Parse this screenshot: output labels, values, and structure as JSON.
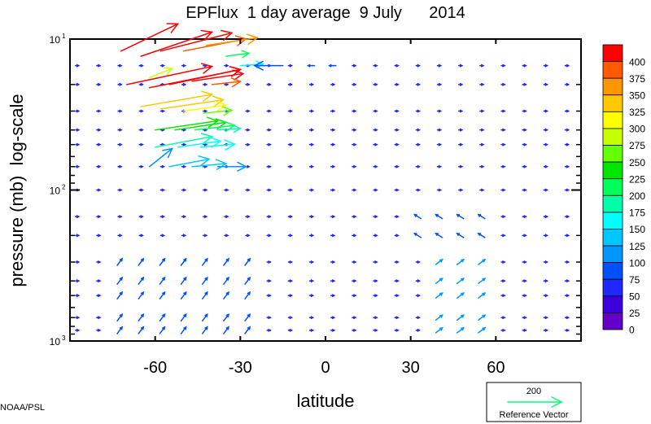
{
  "chart_data": {
    "type": "vector-field",
    "title": "EPFlux  1 day average  9 July      2014",
    "xlabel": "latitude",
    "ylabel": "pressure (mb)  log-scale",
    "xlim": [
      -90,
      90
    ],
    "ylim": [
      1000,
      10
    ],
    "yscale": "log",
    "x_ticks": [
      -60,
      -30,
      0,
      30,
      60
    ],
    "x_tick_labels": [
      "-60",
      "-30",
      "0",
      "30",
      "60"
    ],
    "y_ticks": [
      {
        "value": 10,
        "base": "10",
        "exp": "1"
      },
      {
        "value": 100,
        "base": "10",
        "exp": "2"
      },
      {
        "value": 1000,
        "base": "10",
        "exp": "3"
      }
    ],
    "colorbar": {
      "levels": [
        400,
        375,
        350,
        325,
        300,
        275,
        250,
        225,
        200,
        175,
        150,
        125,
        100,
        75,
        50,
        25,
        0
      ],
      "colors": [
        "#ff0000",
        "#ff5a00",
        "#ff9600",
        "#ffc800",
        "#ffff00",
        "#c8ff00",
        "#64ff00",
        "#00e600",
        "#00ff5a",
        "#00ffaa",
        "#00ffff",
        "#00c8ff",
        "#0096ff",
        "#0050ff",
        "#1e28ff",
        "#3c00dc",
        "#6400c8"
      ]
    },
    "reference_vector": {
      "value": "200",
      "label": "Reference Vector",
      "color": "#00ff78"
    },
    "longitudes_grid": [
      -87.5,
      -80,
      -72.5,
      -65,
      -57.5,
      -50,
      -42.5,
      -35,
      -27.5,
      -20,
      -12.5,
      -5,
      2.5,
      10,
      17.5,
      25,
      32.5,
      40,
      47.5,
      55,
      62.5,
      70,
      77.5,
      85
    ],
    "pressure_levels": [
      10,
      15,
      20,
      30,
      40,
      50,
      70,
      100,
      150,
      200,
      300,
      400,
      500,
      700,
      850,
      1000
    ],
    "strong_vectors": [
      {
        "lat": -72,
        "p": 12,
        "dlat": 20,
        "dlogp": 0.18,
        "mag": 400
      },
      {
        "lat": -65,
        "p": 13,
        "dlat": 25,
        "dlogp": 0.16,
        "mag": 400
      },
      {
        "lat": -58,
        "p": 12,
        "dlat": 25,
        "dlogp": 0.12,
        "mag": 400
      },
      {
        "lat": -50,
        "p": 12,
        "dlat": 22,
        "dlogp": 0.08,
        "mag": 375
      },
      {
        "lat": -42,
        "p": 11,
        "dlat": 18,
        "dlogp": 0.05,
        "mag": 350
      },
      {
        "lat": -35,
        "p": 13,
        "dlat": 8,
        "dlogp": 0.02,
        "mag": 200
      },
      {
        "lat": -70,
        "p": 20,
        "dlat": 30,
        "dlogp": 0.12,
        "mag": 400
      },
      {
        "lat": -62,
        "p": 21,
        "dlat": 32,
        "dlogp": 0.12,
        "mag": 400
      },
      {
        "lat": -55,
        "p": 20,
        "dlat": 25,
        "dlogp": 0.1,
        "mag": 400
      },
      {
        "lat": -47,
        "p": 19,
        "dlat": 18,
        "dlogp": 0.05,
        "mag": 400
      },
      {
        "lat": -40,
        "p": 20,
        "dlat": 10,
        "dlogp": 0.02,
        "mag": 375
      },
      {
        "lat": -62,
        "p": 18,
        "dlat": 8,
        "dlogp": 0.06,
        "mag": 275
      },
      {
        "lat": -65,
        "p": 28,
        "dlat": 25,
        "dlogp": 0.08,
        "mag": 325
      },
      {
        "lat": -58,
        "p": 29,
        "dlat": 22,
        "dlogp": 0.06,
        "mag": 325
      },
      {
        "lat": -50,
        "p": 30,
        "dlat": 15,
        "dlogp": 0.04,
        "mag": 300
      },
      {
        "lat": -43,
        "p": 31,
        "dlat": 10,
        "dlogp": 0.02,
        "mag": 250
      },
      {
        "lat": -60,
        "p": 40,
        "dlat": 22,
        "dlogp": 0.06,
        "mag": 225
      },
      {
        "lat": -53,
        "p": 40,
        "dlat": 18,
        "dlogp": 0.05,
        "mag": 225
      },
      {
        "lat": -46,
        "p": 40,
        "dlat": 14,
        "dlogp": 0.03,
        "mag": 200
      },
      {
        "lat": -38,
        "p": 40,
        "dlat": 8,
        "dlogp": 0.01,
        "mag": 175
      },
      {
        "lat": -60,
        "p": 52,
        "dlat": 20,
        "dlogp": 0.07,
        "mag": 175
      },
      {
        "lat": -52,
        "p": 52,
        "dlat": 15,
        "dlogp": 0.04,
        "mag": 150
      },
      {
        "lat": -44,
        "p": 52,
        "dlat": 12,
        "dlogp": 0.02,
        "mag": 150
      },
      {
        "lat": -62,
        "p": 70,
        "dlat": 8,
        "dlogp": 0.12,
        "mag": 100
      },
      {
        "lat": -55,
        "p": 70,
        "dlat": 14,
        "dlogp": 0.05,
        "mag": 125
      },
      {
        "lat": -47,
        "p": 70,
        "dlat": 12,
        "dlogp": 0.02,
        "mag": 125
      },
      {
        "lat": -38,
        "p": 70,
        "dlat": 10,
        "dlogp": 0.0,
        "mag": 100
      },
      {
        "lat": -30,
        "p": 15,
        "dlat": 8,
        "dlogp": 0.01,
        "mag": 150
      },
      {
        "lat": -15,
        "p": 15,
        "dlat": -10,
        "dlogp": 0.0,
        "mag": 75
      }
    ]
  },
  "credit": "NOAA/PSL"
}
